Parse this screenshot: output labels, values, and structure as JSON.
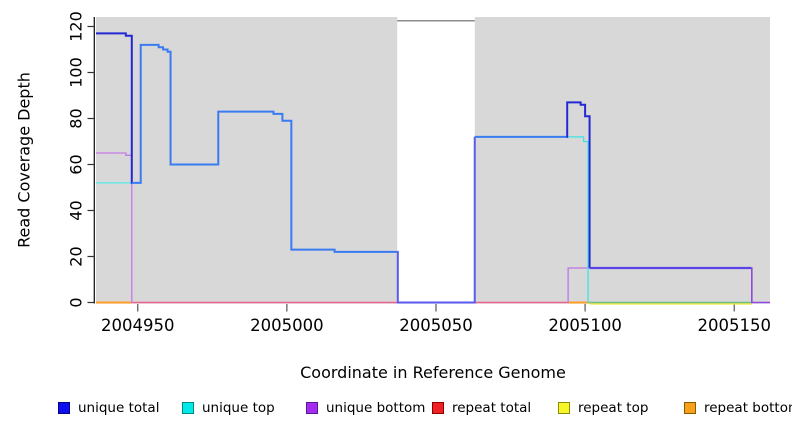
{
  "figure": {
    "y_axis_title": "Read Coverage Depth",
    "x_axis_title": "Coordinate in Reference Genome"
  },
  "legend": {
    "items": [
      {
        "label": "unique total",
        "fill": "#0f0fee",
        "border": "#00008b"
      },
      {
        "label": "unique top",
        "fill": "#00e8e8",
        "border": "#008b8b"
      },
      {
        "label": "unique bottom",
        "fill": "#a32cf0",
        "border": "#551a8b"
      },
      {
        "label": "repeat total",
        "fill": "#ee2222",
        "border": "#8b0000"
      },
      {
        "label": "repeat top",
        "fill": "#f6f62a",
        "border": "#8b8b00"
      },
      {
        "label": "repeat bottom",
        "fill": "#f7a019",
        "border": "#8b5a00"
      }
    ]
  },
  "chart_data": {
    "type": "line",
    "subtype": "step-coverage-plot",
    "title": "",
    "xlabel": "Coordinate in Reference Genome",
    "ylabel": "Read Coverage Depth",
    "xlim": [
      2004936,
      2005162
    ],
    "ylim": [
      0,
      124
    ],
    "x_ticks": [
      2004950,
      2005000,
      2005050,
      2005100,
      2005150
    ],
    "y_ticks": [
      0,
      20,
      40,
      60,
      80,
      100,
      120
    ],
    "grid": false,
    "legend_position": "bottom",
    "panel_bg": "#d8d8d8",
    "masked_region": {
      "x0": 2005037,
      "x1": 2005063,
      "fill": "#ffffff",
      "border": "#8c8c8c",
      "border_value": 122.5
    },
    "series": [
      {
        "name": "unique total",
        "color": "#0000ee",
        "steps": [
          [
            2004936,
            117
          ],
          [
            2004946,
            116
          ],
          [
            2004948,
            52
          ],
          [
            2004951,
            112
          ],
          [
            2004957,
            111
          ],
          [
            2004958.5,
            110
          ],
          [
            2004960,
            109
          ],
          [
            2004961,
            60
          ],
          [
            2004977,
            83
          ],
          [
            2004995.5,
            82
          ],
          [
            2004998.5,
            79
          ],
          [
            2005001.5,
            23
          ],
          [
            2005016,
            22
          ],
          [
            2005037,
            0
          ],
          [
            2005063,
            72
          ],
          [
            2005094,
            87
          ],
          [
            2005098.5,
            86
          ],
          [
            2005100,
            81
          ],
          [
            2005101.5,
            15
          ],
          [
            2005156,
            0
          ],
          [
            2005162,
            0
          ]
        ]
      },
      {
        "name": "unique top",
        "color": "#00e8e8",
        "steps": [
          [
            2004936,
            52
          ],
          [
            2004951,
            112
          ],
          [
            2004957,
            111
          ],
          [
            2004958.5,
            110
          ],
          [
            2004960,
            109
          ],
          [
            2004961,
            60
          ],
          [
            2004977,
            83
          ],
          [
            2004995.5,
            82
          ],
          [
            2004998.5,
            79
          ],
          [
            2005001.5,
            23
          ],
          [
            2005016,
            22
          ],
          [
            2005037,
            0
          ],
          [
            2005063,
            72
          ],
          [
            2005099.5,
            70
          ],
          [
            2005101,
            0
          ],
          [
            2005162,
            0
          ]
        ]
      },
      {
        "name": "unique bottom",
        "color": "#a32cf0",
        "steps": [
          [
            2004936,
            65
          ],
          [
            2004946,
            64
          ],
          [
            2004948,
            0
          ],
          [
            2005094,
            15
          ],
          [
            2005156,
            0
          ],
          [
            2005162,
            0
          ]
        ]
      },
      {
        "name": "repeat total",
        "color": "#ee2222",
        "steps": [
          [
            2004936,
            0
          ],
          [
            2005162,
            0
          ]
        ]
      },
      {
        "name": "repeat top",
        "color": "#f6f62a",
        "steps": [
          [
            2004936,
            0
          ],
          [
            2005162,
            0
          ]
        ]
      },
      {
        "name": "repeat bottom",
        "color": "#f7a019",
        "steps": [
          [
            2004936,
            0
          ],
          [
            2005162,
            0
          ]
        ]
      }
    ],
    "rendered_segments": [
      {
        "name": "repeat-top-zero",
        "color": "#f2e93e",
        "width": 1.5,
        "pts": [
          [
            2005101.5,
            -0.6
          ],
          [
            2005156,
            -0.6
          ]
        ]
      },
      {
        "name": "repeat-total-zero",
        "color": "#ec6191",
        "width": 1.4,
        "pts": [
          [
            2004948,
            0
          ],
          [
            2005094,
            0
          ]
        ]
      },
      {
        "name": "repeat-bottom-zero-l",
        "color": "#ff9e26",
        "width": 2.0,
        "pts": [
          [
            2004936,
            0
          ],
          [
            2004948,
            0
          ]
        ]
      },
      {
        "name": "repeat-bottom-zero-r",
        "color": "#ff9e26",
        "width": 2.0,
        "pts": [
          [
            2005094,
            0
          ],
          [
            2005101.5,
            0
          ]
        ]
      },
      {
        "name": "top-over-yellow-zero",
        "color": "#6cbd86",
        "width": 1.4,
        "pts": [
          [
            2005101.5,
            0
          ],
          [
            2005156,
            0
          ]
        ]
      },
      {
        "name": "unique-bottom-left",
        "color": "#c47ae4",
        "width": 1.3,
        "pts": [
          [
            2004936,
            65
          ],
          [
            2004946,
            64
          ],
          [
            2004948,
            0
          ],
          [
            2004948.2,
            0
          ]
        ]
      },
      {
        "name": "unique-top-left",
        "color": "#52e8e8",
        "width": 1.3,
        "pts": [
          [
            2004936,
            52
          ],
          [
            2004948,
            52
          ]
        ]
      },
      {
        "name": "unique-bottom-right",
        "color": "#bb76e8",
        "width": 1.3,
        "pts": [
          [
            2005094,
            0
          ],
          [
            2005094.3,
            15
          ],
          [
            2005101.5,
            15
          ]
        ]
      },
      {
        "name": "unique-top-right",
        "color": "#3fe3e3",
        "width": 1.3,
        "pts": [
          [
            2005094,
            72
          ],
          [
            2005099.5,
            70
          ],
          [
            2005101,
            0
          ],
          [
            2005101.3,
            0
          ]
        ]
      },
      {
        "name": "unique-total-navy-l",
        "color": "#2328d4",
        "width": 2.0,
        "pts": [
          [
            2004936,
            117
          ],
          [
            2004946,
            116
          ],
          [
            2004948,
            52
          ],
          [
            2004948.3,
            52
          ]
        ]
      },
      {
        "name": "unique-total-main-a",
        "color": "#3b7bf2",
        "width": 2.0,
        "pts": [
          [
            2004948,
            52
          ],
          [
            2004951,
            112
          ],
          [
            2004957,
            111
          ],
          [
            2004958.5,
            110
          ],
          [
            2004960,
            109
          ],
          [
            2004961,
            60
          ],
          [
            2004977,
            83
          ],
          [
            2004995.5,
            82
          ],
          [
            2004998.5,
            79
          ],
          [
            2005001.5,
            23
          ],
          [
            2005016,
            22
          ],
          [
            2005037,
            22
          ]
        ]
      },
      {
        "name": "unique-total-band",
        "color": "#5a5af0",
        "width": 2.0,
        "pts": [
          [
            2005037,
            22
          ],
          [
            2005037.2,
            0
          ],
          [
            2005063,
            72
          ]
        ]
      },
      {
        "name": "unique-total-main-b",
        "color": "#3b7bf2",
        "width": 2.0,
        "pts": [
          [
            2005063,
            72
          ],
          [
            2005094,
            72
          ]
        ]
      },
      {
        "name": "unique-total-navy-r",
        "color": "#2328d4",
        "width": 2.0,
        "pts": [
          [
            2005093.8,
            72
          ],
          [
            2005094,
            87
          ],
          [
            2005098.5,
            86
          ],
          [
            2005100,
            81
          ],
          [
            2005101.5,
            15
          ]
        ]
      },
      {
        "name": "total-over-bottom-15",
        "color": "#5b43e8",
        "width": 2.2,
        "pts": [
          [
            2005101.5,
            15
          ],
          [
            2005155.8,
            15
          ]
        ]
      },
      {
        "name": "unique-bottom-tail",
        "color": "#8f47dd",
        "width": 1.6,
        "pts": [
          [
            2005155.6,
            15
          ],
          [
            2005155.9,
            0
          ],
          [
            2005162,
            0
          ]
        ]
      }
    ]
  }
}
